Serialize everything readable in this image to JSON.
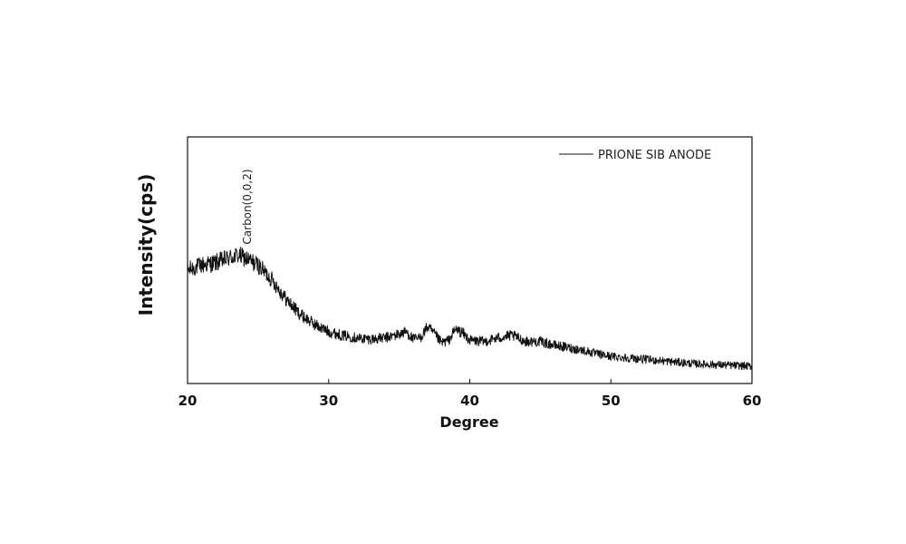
{
  "chart_data": {
    "type": "line",
    "xlabel": "Degree",
    "ylabel": "Intensity(cps)",
    "xlim": [
      20,
      60
    ],
    "ylim": [
      0,
      100
    ],
    "xticks": [
      20,
      30,
      40,
      50,
      60
    ],
    "xtick_labels": [
      "20",
      "30",
      "40",
      "50",
      "60"
    ],
    "yticks": [],
    "grid": false,
    "legend_position": "top-right",
    "series": [
      {
        "name": "PRIONE SIB ANODE",
        "color": "#111111",
        "x": [
          20,
          21,
          22,
          23,
          23.6,
          24,
          25,
          26,
          27,
          28,
          29,
          30,
          31,
          32,
          33,
          34,
          35,
          35.5,
          36,
          36.5,
          37,
          37.5,
          38,
          38.5,
          39,
          39.5,
          40,
          41,
          42,
          43,
          44,
          45,
          46,
          47,
          48,
          49,
          50,
          52,
          54,
          56,
          58,
          60
        ],
        "y": [
          46,
          48,
          49,
          51,
          52,
          51,
          48,
          42,
          34,
          28,
          24,
          21,
          19.5,
          18.5,
          18,
          18.5,
          20,
          21,
          18,
          18.5,
          23,
          20,
          16.5,
          17.5,
          22,
          20.5,
          17.5,
          17,
          18.5,
          19.5,
          17,
          17,
          15.5,
          14.5,
          13.5,
          12,
          11,
          10,
          9,
          8,
          7.5,
          7
        ]
      }
    ],
    "annotations": [
      {
        "text": "Carbon(0,0,2)",
        "x": 23.6,
        "y": 52
      }
    ]
  }
}
